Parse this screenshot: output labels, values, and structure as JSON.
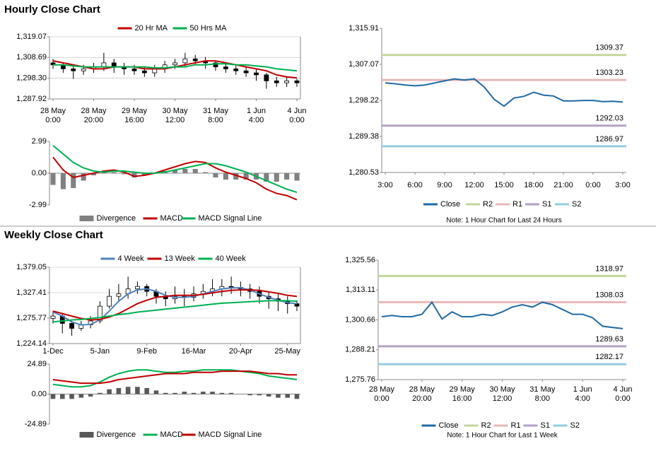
{
  "sections": [
    {
      "title": "Hourly Close Chart"
    },
    {
      "title": "Weekly Close Chart"
    }
  ],
  "chart_data": [
    {
      "type": "candlestick",
      "grid": true,
      "categories": [
        [
          "28 May",
          "0:00"
        ],
        null,
        null,
        null,
        [
          "28 May",
          "20:00"
        ],
        null,
        null,
        null,
        [
          "29 May",
          "16:00"
        ],
        null,
        null,
        null,
        [
          "30 May",
          "12:00"
        ],
        null,
        null,
        null,
        [
          "31 May",
          "8:00"
        ],
        null,
        null,
        null,
        [
          "1 Jun",
          "4:00"
        ],
        null,
        null,
        null,
        [
          "4 Jun",
          "0:00"
        ]
      ],
      "open": [
        1306,
        1305,
        1303,
        1302,
        1303,
        1304,
        1306,
        1304,
        1303,
        1302,
        1301,
        1303,
        1305,
        1306,
        1308,
        1307,
        1306,
        1304,
        1303,
        1302,
        1301,
        1300,
        1297,
        1296,
        1297
      ],
      "high": [
        1308,
        1306,
        1305,
        1305,
        1306,
        1311,
        1308,
        1306,
        1305,
        1304,
        1305,
        1307,
        1308,
        1311,
        1310,
        1309,
        1307,
        1306,
        1305,
        1304,
        1303,
        1301,
        1299,
        1299,
        1298
      ],
      "low": [
        1303,
        1301,
        1298,
        1300,
        1301,
        1302,
        1301,
        1300,
        1300,
        1299,
        1299,
        1301,
        1303,
        1304,
        1305,
        1303,
        1302,
        1301,
        1300,
        1299,
        1297,
        1293,
        1294,
        1294,
        1294
      ],
      "close": [
        1305,
        1303,
        1302,
        1303,
        1304,
        1306,
        1304,
        1303,
        1302,
        1301,
        1303,
        1305,
        1306,
        1308,
        1307,
        1306,
        1304,
        1303,
        1302,
        1301,
        1300,
        1297,
        1296,
        1297,
        1296
      ],
      "series": [
        {
          "name": "20 Hr MA",
          "color": "#c00000",
          "values": [
            1307,
            1306,
            1305,
            1304,
            1303,
            1303,
            1304,
            1304,
            1304,
            1303,
            1303,
            1303,
            1304,
            1305,
            1306,
            1307,
            1307,
            1306,
            1305,
            1304,
            1303,
            1302,
            1300,
            1299,
            1298.5
          ]
        },
        {
          "name": "50 Hrs MA",
          "color": "#00b050",
          "values": [
            1305,
            1305,
            1304.5,
            1304,
            1304,
            1304,
            1304,
            1304,
            1304,
            1304,
            1303.5,
            1303.5,
            1304,
            1304,
            1305,
            1305,
            1305.5,
            1305.5,
            1305,
            1305,
            1304.5,
            1304,
            1303,
            1302.5,
            1302
          ]
        }
      ],
      "ylim": [
        1287.92,
        1319.07
      ],
      "yticks": [
        {
          "value": 1287.92,
          "label": "1,287.92"
        },
        {
          "value": 1298.3,
          "label": "1,298.30"
        },
        {
          "value": 1308.69,
          "label": "1,308.69"
        },
        {
          "value": 1319.07,
          "label": "1,319.07"
        }
      ]
    },
    {
      "type": "combo",
      "grid": false,
      "series": [
        {
          "name": "Divergence",
          "kind": "bar",
          "color": "#808080",
          "values": [
            -1.1,
            -1.5,
            -1.4,
            -0.7,
            -0.2,
            0.1,
            0.1,
            -0.1,
            -0.4,
            -0.2,
            0.0,
            0.2,
            0.3,
            0.4,
            0.4,
            0.1,
            -0.4,
            -0.6,
            -0.6,
            -0.6,
            -0.6,
            -0.8,
            -0.8,
            -0.6,
            -0.7
          ]
        },
        {
          "name": "MACD",
          "kind": "line",
          "color": "#c00000",
          "values": [
            1.5,
            0.3,
            -0.4,
            -0.2,
            0.0,
            0.2,
            0.3,
            0.1,
            -0.3,
            -0.2,
            0.0,
            0.3,
            0.6,
            0.9,
            1.1,
            1.0,
            0.5,
            0.1,
            -0.2,
            -0.5,
            -0.9,
            -1.5,
            -1.9,
            -2.1,
            -2.5
          ]
        },
        {
          "name": "MACD Signal Line",
          "kind": "line",
          "color": "#00b050",
          "values": [
            2.6,
            1.8,
            1.0,
            0.5,
            0.2,
            0.1,
            0.2,
            0.2,
            0.1,
            0.0,
            0.0,
            0.1,
            0.3,
            0.5,
            0.7,
            0.9,
            0.9,
            0.7,
            0.4,
            0.1,
            -0.3,
            -0.7,
            -1.1,
            -1.5,
            -1.8
          ]
        }
      ],
      "ylim": [
        -2.99,
        2.99
      ],
      "yticks": [
        -2.99,
        {
          "value": 0,
          "label": "0.00"
        },
        2.99
      ]
    },
    {
      "type": "line",
      "grid": false,
      "categories": [
        "3:00",
        null,
        null,
        "6:00",
        null,
        null,
        "9:00",
        null,
        null,
        "12:00",
        null,
        null,
        "15:00",
        null,
        null,
        "18:00",
        null,
        null,
        "21:00",
        null,
        null,
        "0:00",
        null,
        null,
        "3:00"
      ],
      "series": [
        {
          "name": "Close",
          "color": "#1f6aa5",
          "values": [
            1302.5,
            1302.3,
            1302,
            1301.8,
            1302,
            1302.5,
            1303,
            1303.5,
            1303.2,
            1303.5,
            1301.5,
            1298.5,
            1296.8,
            1298.8,
            1299.2,
            1300.2,
            1299.5,
            1299.3,
            1298.1,
            1298.1,
            1298.2,
            1298.2,
            1297.9,
            1298,
            1297.8
          ]
        }
      ],
      "levels": [
        {
          "name": "R2",
          "value": 1309.37,
          "color": "#c3d69b"
        },
        {
          "name": "R1",
          "value": 1303.23,
          "color": "#e6b9b8"
        },
        {
          "name": "S1",
          "value": 1292.03,
          "color": "#b3a2c7"
        },
        {
          "name": "S2",
          "value": 1286.97,
          "color": "#93cddd"
        }
      ],
      "note": "Note: 1 Hour Chart for Last 24 Hours",
      "ylim": [
        1280.53,
        1315.91
      ],
      "yticks": [
        {
          "value": 1280.53,
          "label": "1,280.53"
        },
        {
          "value": 1289.38,
          "label": "1,289.38"
        },
        {
          "value": 1298.22,
          "label": "1,298.22"
        },
        {
          "value": 1307.07,
          "label": "1,307.07"
        },
        {
          "value": 1315.91,
          "label": "1,315.91"
        }
      ]
    },
    {
      "type": "candlestick",
      "grid": true,
      "categories": [
        "1-Dec",
        null,
        null,
        null,
        null,
        "5-Jan",
        null,
        null,
        null,
        null,
        "9-Feb",
        null,
        null,
        null,
        null,
        "16-Mar",
        null,
        null,
        null,
        null,
        "20-Apr",
        null,
        null,
        null,
        null,
        "25-May",
        null
      ],
      "open": [
        1275,
        1280,
        1265,
        1255,
        1262,
        1270,
        1300,
        1320,
        1325,
        1335,
        1340,
        1330,
        1320,
        1315,
        1320,
        1318,
        1325,
        1330,
        1335,
        1340,
        1338,
        1335,
        1330,
        1320,
        1315,
        1310,
        1305
      ],
      "high": [
        1290,
        1285,
        1270,
        1270,
        1280,
        1310,
        1335,
        1345,
        1360,
        1350,
        1345,
        1335,
        1330,
        1340,
        1335,
        1340,
        1345,
        1355,
        1355,
        1360,
        1350,
        1345,
        1340,
        1330,
        1325,
        1320,
        1312
      ],
      "low": [
        1265,
        1245,
        1240,
        1250,
        1255,
        1265,
        1295,
        1310,
        1315,
        1325,
        1320,
        1305,
        1300,
        1305,
        1300,
        1310,
        1315,
        1320,
        1320,
        1325,
        1320,
        1315,
        1305,
        1295,
        1290,
        1285,
        1290
      ],
      "close": [
        1280,
        1265,
        1255,
        1262,
        1270,
        1300,
        1320,
        1325,
        1335,
        1340,
        1330,
        1320,
        1315,
        1320,
        1318,
        1325,
        1330,
        1335,
        1340,
        1338,
        1335,
        1330,
        1320,
        1315,
        1310,
        1305,
        1300
      ],
      "series": [
        {
          "name": "4 Week",
          "color": "#4f81bd",
          "values": [
            1288,
            1280,
            1268,
            1262,
            1263,
            1272,
            1290,
            1310,
            1325,
            1333,
            1335,
            1330,
            1322,
            1318,
            1318,
            1320,
            1325,
            1330,
            1335,
            1337,
            1337,
            1333,
            1325,
            1318,
            1312,
            1307,
            1305
          ]
        },
        {
          "name": "13 Week",
          "color": "#c00000",
          "values": [
            1290,
            1285,
            1280,
            1275,
            1272,
            1273,
            1278,
            1285,
            1295,
            1305,
            1312,
            1318,
            1320,
            1322,
            1322,
            1322,
            1324,
            1327,
            1330,
            1332,
            1333,
            1333,
            1332,
            1329,
            1326,
            1322,
            1320
          ]
        },
        {
          "name": "40 Week",
          "color": "#00b050",
          "values": [
            1268,
            1270,
            1272,
            1273,
            1275,
            1277,
            1280,
            1283,
            1285,
            1288,
            1290,
            1292,
            1294,
            1296,
            1298,
            1300,
            1302,
            1304,
            1306,
            1307,
            1308,
            1309,
            1310,
            1311,
            1311,
            1311,
            1310
          ]
        }
      ],
      "ylim": [
        1224.14,
        1379.05
      ],
      "yticks": [
        {
          "value": 1224.14,
          "label": "1,224.14"
        },
        {
          "value": 1275.77,
          "label": "1,275.77"
        },
        {
          "value": 1327.41,
          "label": "1,327.41"
        },
        {
          "value": 1379.05,
          "label": "1,379.05"
        }
      ]
    },
    {
      "type": "combo",
      "grid": false,
      "series": [
        {
          "name": "Divergence",
          "kind": "bar",
          "color": "#595959",
          "values": [
            -4,
            -4,
            -4,
            -3,
            -2,
            1,
            4,
            5,
            6,
            6,
            5,
            3,
            1,
            1,
            2,
            1,
            2,
            2,
            1,
            1,
            0,
            -1,
            -1,
            -2,
            -3,
            -3,
            -4
          ]
        },
        {
          "name": "MACD",
          "kind": "line",
          "color": "#00b050",
          "values": [
            8,
            7,
            6,
            6,
            7,
            10,
            14,
            17,
            19,
            20,
            20,
            19,
            18,
            18,
            19,
            19,
            20,
            20,
            20,
            20,
            19,
            18,
            17,
            15,
            14,
            13,
            12
          ]
        },
        {
          "name": "MACD Signal Line",
          "kind": "line",
          "color": "#c00000",
          "values": [
            12,
            11,
            10,
            9,
            9,
            9,
            10,
            12,
            13,
            14,
            15,
            16,
            17,
            17,
            17,
            18,
            18,
            18,
            19,
            19,
            19,
            19,
            18,
            17,
            17,
            16,
            16
          ]
        }
      ],
      "ylim": [
        -24.89,
        24.89
      ],
      "yticks": [
        -24.89,
        {
          "value": 0,
          "label": "0.00"
        },
        24.89
      ]
    },
    {
      "type": "line",
      "grid": false,
      "categories": [
        [
          "28 May",
          "0:00"
        ],
        null,
        null,
        null,
        [
          "28 May",
          "20:00"
        ],
        null,
        null,
        null,
        [
          "29 May",
          "16:00"
        ],
        null,
        null,
        null,
        [
          "30 May",
          "12:00"
        ],
        null,
        null,
        null,
        [
          "31 May",
          "8:00"
        ],
        null,
        null,
        null,
        [
          "1 Jun",
          "4:00"
        ],
        null,
        null,
        null,
        [
          "4 Jun",
          "0:00"
        ]
      ],
      "series": [
        {
          "name": "Close",
          "color": "#1f6aa5",
          "values": [
            1302,
            1302.5,
            1302,
            1302,
            1303,
            1308,
            1301,
            1304,
            1302,
            1302,
            1303,
            1302.5,
            1304,
            1306,
            1307,
            1306,
            1308,
            1307,
            1305,
            1303,
            1303,
            1301.5,
            1298,
            1297.5,
            1297
          ]
        }
      ],
      "levels": [
        {
          "name": "R2",
          "value": 1318.97,
          "color": "#c3d69b"
        },
        {
          "name": "R1",
          "value": 1308.03,
          "color": "#e6b9b8"
        },
        {
          "name": "S1",
          "value": 1289.63,
          "color": "#b3a2c7"
        },
        {
          "name": "S2",
          "value": 1282.17,
          "color": "#93cddd"
        }
      ],
      "note": "Note: 1 Hour Chart for Last 1 Week",
      "ylim": [
        1275.76,
        1325.56
      ],
      "yticks": [
        {
          "value": 1275.76,
          "label": "1,275.76"
        },
        {
          "value": 1288.21,
          "label": "1,288.21"
        },
        {
          "value": 1300.66,
          "label": "1,300.66"
        },
        {
          "value": 1313.11,
          "label": "1,313.11"
        },
        {
          "value": 1325.56,
          "label": "1,325.56"
        }
      ]
    }
  ]
}
